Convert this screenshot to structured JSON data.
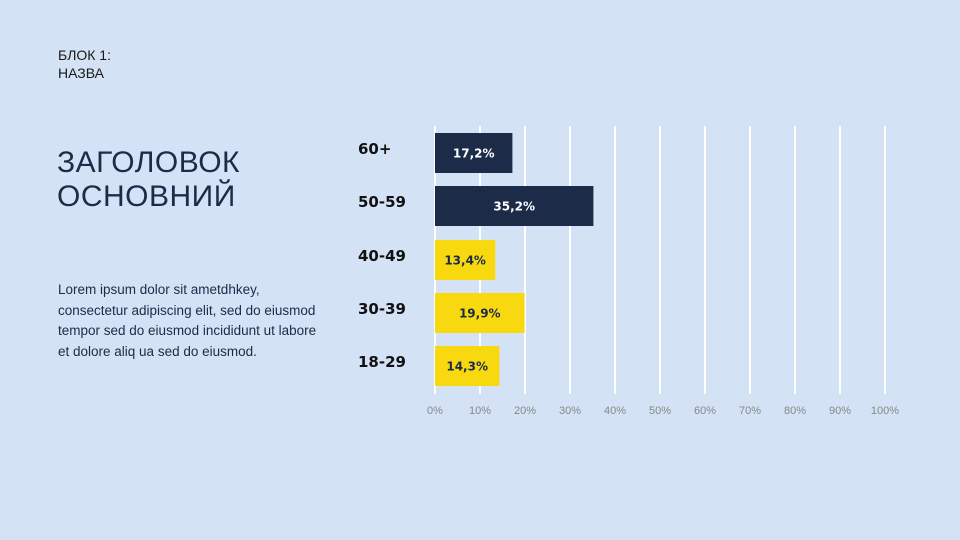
{
  "block": {
    "line1": "БЛОК 1:",
    "line2": "НАЗВА"
  },
  "title": {
    "line1": "ЗАГОЛОВОК",
    "line2": "ОСНОВНИЙ"
  },
  "body": {
    "lines": [
      "Lorem ipsum dolor sit ametdhkey,",
      "consectetur adipiscing elit, sed do eiusmod",
      "tempor sed do eiusmod incididunt ut labore",
      "et dolore aliq ua sed do eiusmod."
    ]
  },
  "colors": {
    "background": "#d3e2f4",
    "dark": "#1b2b48",
    "yellow": "#f8d90f",
    "grid": "#ffffff"
  },
  "chart_data": {
    "type": "bar",
    "orientation": "horizontal",
    "categories": [
      "60+",
      "50-59",
      "40-49",
      "30-39",
      "18-29"
    ],
    "values": [
      17.2,
      35.2,
      13.4,
      19.9,
      14.3
    ],
    "value_labels": [
      "17,2%",
      "35,2%",
      "13,4%",
      "19,9%",
      "14,3%"
    ],
    "bar_colors": [
      "#1b2b48",
      "#1b2b48",
      "#f8d90f",
      "#f8d90f",
      "#f8d90f"
    ],
    "label_colors": [
      "#ffffff",
      "#ffffff",
      "#1b2b48",
      "#1b2b48",
      "#1b2b48"
    ],
    "xlim": [
      0,
      100
    ],
    "xticks": [
      0,
      10,
      20,
      30,
      40,
      50,
      60,
      70,
      80,
      90,
      100
    ],
    "xtick_labels": [
      "0%",
      "10%",
      "20%",
      "30%",
      "40%",
      "50%",
      "60%",
      "70%",
      "80%",
      "90%",
      "100%"
    ],
    "grid": true,
    "title": "",
    "xlabel": "",
    "ylabel": ""
  }
}
